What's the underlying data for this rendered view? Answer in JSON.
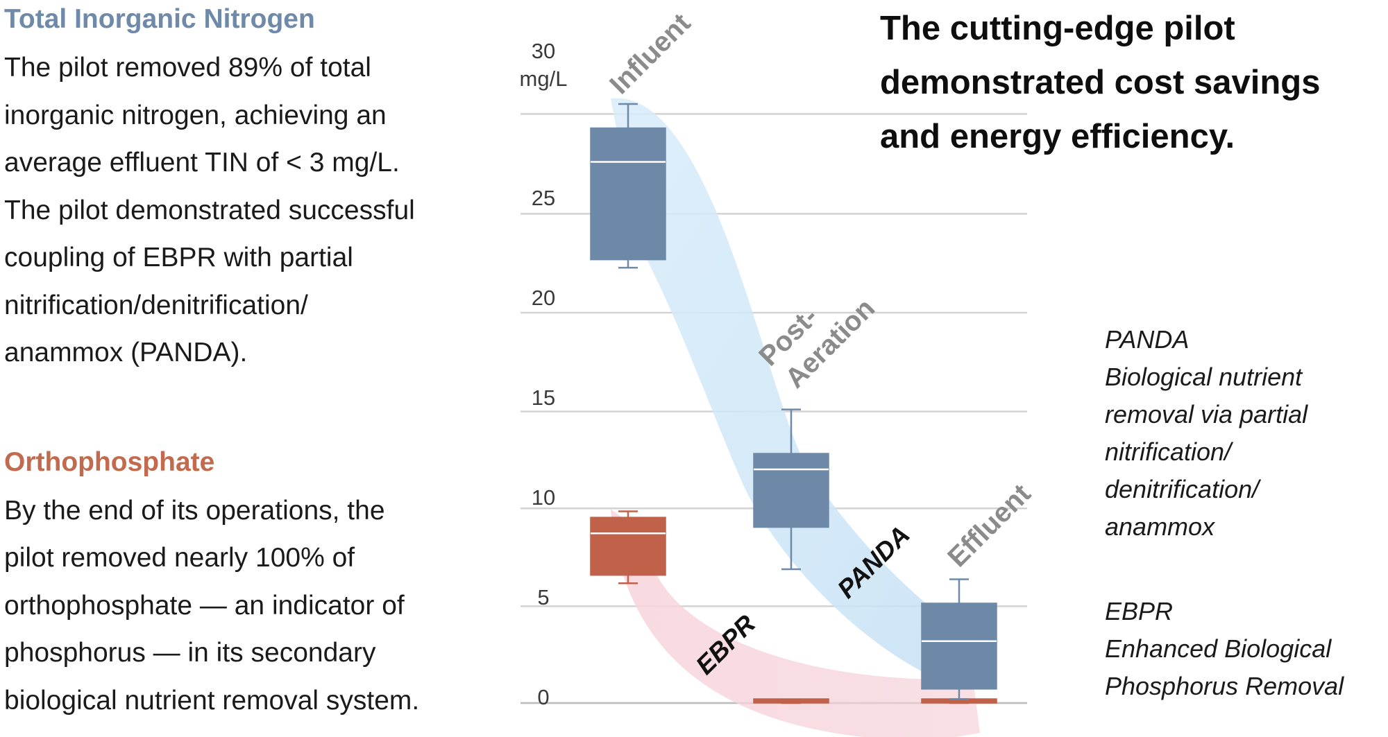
{
  "sections": {
    "tin": {
      "heading": "Total Inorganic Nitrogen",
      "lines": [
        "The pilot removed 89% of total",
        "inorganic nitrogen, achieving an",
        "average effluent TIN of < 3 mg/L.",
        "The pilot demonstrated successful",
        "coupling of EBPR with partial",
        "nitrification/denitrification/",
        "anammox (PANDA)."
      ]
    },
    "orthophosphate": {
      "heading": "Orthophosphate",
      "lines": [
        "By the end of its operations, the",
        "pilot removed nearly 100% of",
        "orthophosphate — an indicator of",
        "phosphorus — in its secondary",
        "biological nutrient removal system."
      ]
    }
  },
  "headline": {
    "lines": [
      "The cutting-edge pilot",
      "demonstrated cost savings",
      "and energy efficiency."
    ]
  },
  "legend": {
    "panda": {
      "lines": [
        "PANDA",
        "Biological nutrient",
        "removal via partial",
        "nitrification/",
        "denitrification/",
        "anammox"
      ]
    },
    "ebpr": {
      "lines": [
        "EBPR",
        "Enhanced Biological",
        "Phosphorus Removal"
      ]
    }
  },
  "chart_data": {
    "type": "boxplot",
    "y_unit": "mg/L",
    "ylim": [
      0,
      30
    ],
    "y_ticks": [
      0,
      5,
      10,
      15,
      20,
      25,
      30
    ],
    "y_tick_labels": [
      "0",
      "5",
      "10",
      "15",
      "20",
      "25",
      "30"
    ],
    "grid": true,
    "categories": [
      "Influent",
      "Post-Aeration",
      "Effluent"
    ],
    "stage_labels": [
      "Influent",
      "Post-",
      "Aeration",
      "Effluent"
    ],
    "series": [
      {
        "key": "tin",
        "color": "#6e89a7",
        "boxes": [
          {
            "category": "Influent",
            "min": 21.8,
            "q1": 22.2,
            "median": 27.1,
            "q3": 28.8,
            "max": 30.0
          },
          {
            "category": "Post-Aeration",
            "min": 6.7,
            "q1": 8.8,
            "median": 11.7,
            "q3": 12.5,
            "max": 14.7
          },
          {
            "category": "Effluent",
            "min": 0.2,
            "q1": 0.7,
            "median": 3.1,
            "q3": 5.0,
            "max": 6.2
          }
        ]
      },
      {
        "key": "orthophosphate",
        "color": "#c0614a",
        "boxes": [
          {
            "category": "Influent",
            "min": 6.0,
            "q1": 6.4,
            "median": 8.5,
            "q3": 9.3,
            "max": 9.6
          },
          {
            "category": "Post-Aeration",
            "min": 0.0,
            "q1": 0.0,
            "median": 0.05,
            "q3": 0.1,
            "max": 0.1
          },
          {
            "category": "Effluent",
            "min": 0.0,
            "q1": 0.0,
            "median": 0.05,
            "q3": 0.1,
            "max": 0.1
          }
        ]
      }
    ],
    "flows": [
      {
        "label": "PANDA",
        "color": "#cfe6f7"
      },
      {
        "label": "EBPR",
        "color": "#f6d3da"
      }
    ]
  }
}
